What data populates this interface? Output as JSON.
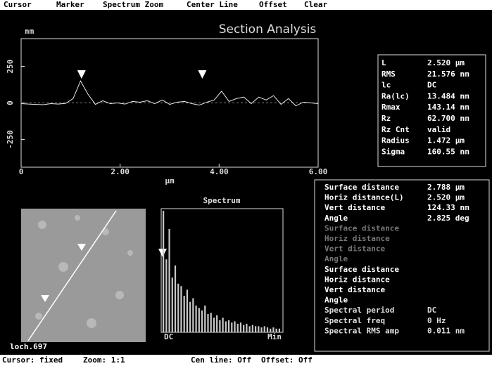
{
  "menu": [
    "Cursor",
    "Marker",
    "Spectrum Zoom",
    "Center Line",
    "Offset",
    "Clear"
  ],
  "title": "Section Analysis",
  "profile": {
    "type": "line",
    "y_unit": "nm",
    "x_unit": "µm",
    "color": "#e8e8e8",
    "x": [
      0,
      0.15,
      0.3,
      0.45,
      0.6,
      0.75,
      0.9,
      1.05,
      1.2,
      1.35,
      1.5,
      1.65,
      1.8,
      1.95,
      2.1,
      2.25,
      2.4,
      2.55,
      2.7,
      2.85,
      3.0,
      3.15,
      3.3,
      3.45,
      3.6,
      3.75,
      3.9,
      4.05,
      4.2,
      4.35,
      4.5,
      4.65,
      4.8,
      4.95,
      5.1,
      5.25,
      5.4,
      5.55,
      5.7,
      5.85,
      6.0
    ],
    "values": [
      -5,
      -8,
      -10,
      -12,
      -5,
      -8,
      -3,
      30,
      150,
      60,
      -10,
      15,
      -5,
      0,
      -8,
      10,
      5,
      15,
      -5,
      20,
      -10,
      5,
      10,
      -5,
      -15,
      5,
      20,
      80,
      10,
      30,
      40,
      -5,
      40,
      20,
      50,
      -10,
      30,
      -20,
      5,
      0,
      -5
    ],
    "xlim": [
      0,
      6
    ],
    "ylim": [
      -440,
      440
    ],
    "xticks": [
      0,
      {
        "value": 2,
        "label": "2.00"
      },
      {
        "value": 4,
        "label": "4.00"
      },
      {
        "value": 6,
        "label": "6.00"
      }
    ],
    "yticks": [
      -250,
      0,
      250
    ],
    "cursors": [
      1.22,
      3.66
    ]
  },
  "stats": [
    [
      "L",
      "2.520 µm"
    ],
    [
      "RMS",
      "21.576 nm"
    ],
    [
      "lc",
      "DC"
    ],
    [
      "Ra(lc)",
      "13.484 nm"
    ],
    [
      "Rmax",
      "143.14 nm"
    ],
    [
      "Rz",
      "62.700 nm"
    ],
    [
      "Rz Cnt",
      "valid"
    ],
    [
      "Radius",
      "1.472 µm"
    ],
    [
      "Sigma",
      "160.55 nm"
    ]
  ],
  "image_label": "loch.697",
  "spectrum": {
    "type": "bar",
    "title": "Spectrum",
    "start_label": "DC",
    "end_label": "Min",
    "color": "#c8c8c8",
    "ylim": [
      0,
      100
    ],
    "values": [
      100,
      60,
      85,
      45,
      55,
      40,
      38,
      30,
      35,
      25,
      28,
      22,
      20,
      18,
      22,
      15,
      16,
      12,
      14,
      10,
      12,
      9,
      10,
      8,
      9,
      7,
      8,
      6,
      7,
      5,
      6,
      5,
      5,
      4,
      5,
      4,
      3,
      4,
      3,
      3
    ]
  },
  "measurements": [
    [
      [
        "Surface distance",
        "2.788 µm"
      ],
      [
        "Horiz distance(L)",
        "2.520 µm"
      ],
      [
        "Vert distance",
        "124.33 nm"
      ],
      [
        "Angle",
        "2.825 deg"
      ]
    ],
    [
      [
        "Surface distance"
      ],
      [
        "Horiz distance"
      ],
      [
        "Vert distance"
      ],
      [
        "Angle"
      ]
    ],
    [
      [
        "Surface distance"
      ],
      [
        "Horiz distance"
      ],
      [
        "Vert distance"
      ],
      [
        "Angle"
      ]
    ],
    [
      [
        "Spectral period",
        "DC"
      ],
      [
        "Spectral freq",
        "0 Hz"
      ],
      [
        "Spectral RMS amp",
        "0.011 nm"
      ]
    ]
  ],
  "status": [
    "Cursor: fixed",
    "Zoom: 1:1",
    "Cen line: Off",
    "Offset: Off"
  ]
}
